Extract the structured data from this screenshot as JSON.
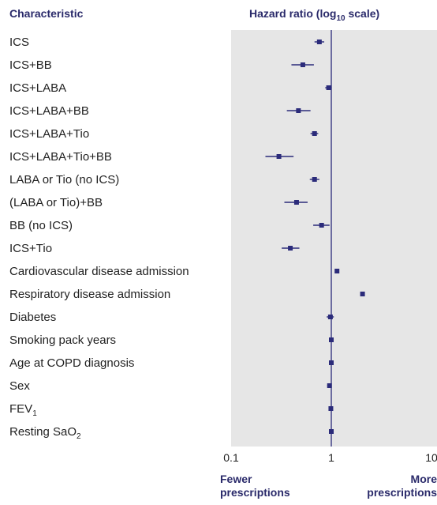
{
  "colors": {
    "panel": "#e6e6e6",
    "marker": "#2b2b7a",
    "refline": "#2b2b7a",
    "header_text": "#2a2a6a"
  },
  "chart_data": {
    "type": "forest",
    "header_left": "Characteristic",
    "header_right_prefix": "Hazard ratio (log",
    "header_right_sub": "10",
    "header_right_suffix": " scale)",
    "x_scale": "log10",
    "xlim": [
      0.1,
      10
    ],
    "reference_line": 1,
    "xticks": [
      "0.1",
      "1",
      "10"
    ],
    "footer_left": [
      "Fewer",
      "prescriptions"
    ],
    "footer_right": [
      "More",
      "prescriptions"
    ],
    "rows": [
      {
        "label": "ICS",
        "hr": 0.76,
        "lo": 0.68,
        "hi": 0.85
      },
      {
        "label": "ICS+BB",
        "hr": 0.52,
        "lo": 0.4,
        "hi": 0.67
      },
      {
        "label": "ICS+LABA",
        "hr": 0.94,
        "lo": 0.87,
        "hi": 1.01
      },
      {
        "label": "ICS+LABA+BB",
        "hr": 0.47,
        "lo": 0.36,
        "hi": 0.62
      },
      {
        "label": "ICS+LABA+Tio",
        "hr": 0.68,
        "lo": 0.62,
        "hi": 0.74
      },
      {
        "label": "ICS+LABA+Tio+BB",
        "hr": 0.3,
        "lo": 0.22,
        "hi": 0.42
      },
      {
        "label": "LABA or Tio (no ICS)",
        "hr": 0.68,
        "lo": 0.61,
        "hi": 0.76
      },
      {
        "label": "(LABA or Tio)+BB",
        "hr": 0.45,
        "lo": 0.34,
        "hi": 0.58
      },
      {
        "label": "BB (no ICS)",
        "hr": 0.8,
        "lo": 0.66,
        "hi": 0.96
      },
      {
        "label": "ICS+Tio",
        "hr": 0.39,
        "lo": 0.32,
        "hi": 0.48
      },
      {
        "label": "Cardiovascular disease admission",
        "hr": 1.14,
        "lo": 1.09,
        "hi": 1.19
      },
      {
        "label": "Respiratory disease admission",
        "hr": 2.05,
        "lo": 1.95,
        "hi": 2.15
      },
      {
        "label": "Diabetes",
        "hr": 0.98,
        "lo": 0.9,
        "hi": 1.06
      },
      {
        "label": "Smoking pack years",
        "hr": 1.0,
        "lo": 0.99,
        "hi": 1.01
      },
      {
        "label": "Age at COPD diagnosis",
        "hr": 1.0,
        "lo": 0.99,
        "hi": 1.01
      },
      {
        "label": "Sex",
        "hr": 0.96,
        "lo": 0.91,
        "hi": 1.01
      },
      {
        "label": "FEV",
        "label_sub": "1",
        "hr": 0.99,
        "lo": 0.98,
        "hi": 1.0
      },
      {
        "label": "Resting SaO",
        "label_sub": "2",
        "hr": 1.0,
        "lo": 0.99,
        "hi": 1.01
      }
    ]
  }
}
